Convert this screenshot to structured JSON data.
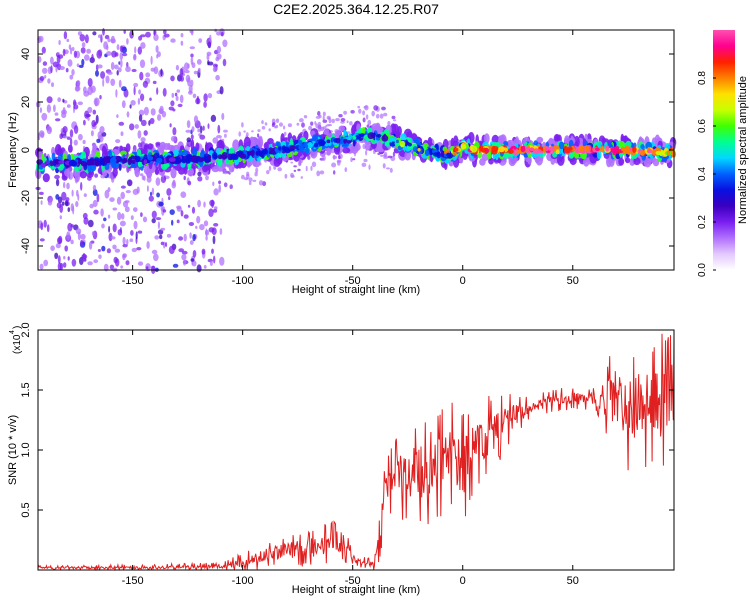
{
  "title": "C2E2.2025.364.12.25.R07",
  "chart_data": [
    {
      "type": "heatmap",
      "title": "C2E2.2025.364.12.25.R07",
      "xlabel": "Height of straight line (km)",
      "ylabel": "Frequency (Hz)",
      "xlim": [
        -193,
        96
      ],
      "ylim": [
        -50,
        50
      ],
      "x_ticks": [
        -150,
        -100,
        -50,
        0,
        50
      ],
      "y_ticks": [
        -40,
        -20,
        0,
        20,
        40
      ],
      "x_tick_labels": [
        "-150",
        "-100",
        "-50",
        "0",
        "50"
      ],
      "y_tick_labels": [
        "-40",
        "-20",
        "0",
        "20",
        "40"
      ],
      "colorbar": {
        "label": "Normalized spectral amplitude",
        "range": [
          0,
          1
        ],
        "ticks": [
          0.0,
          0.2,
          0.4,
          0.6,
          0.8
        ],
        "tick_labels": [
          "0.0",
          "0.2",
          "0.4",
          "0.6",
          "0.8"
        ],
        "colors": [
          "#ffffff",
          "#e4c8ff",
          "#b070ff",
          "#7a1ef0",
          "#3a00c0",
          "#0a10e0",
          "#0060ff",
          "#00d8ff",
          "#00ff90",
          "#40ff00",
          "#c8ff00",
          "#ffe000",
          "#ff8000",
          "#ff2000",
          "#ff0090",
          "#ff50b0"
        ]
      },
      "ridge": {
        "x": [
          -193,
          -170,
          -150,
          -130,
          -110,
          -90,
          -70,
          -55,
          -45,
          -35,
          -25,
          -15,
          -5,
          0,
          5,
          10,
          30,
          50,
          70,
          96
        ],
        "y": [
          -6,
          -5,
          -4,
          -4,
          -3,
          -1,
          2,
          4,
          6,
          5,
          2,
          -1,
          -2,
          2,
          0,
          0,
          0,
          0,
          0,
          -1
        ]
      },
      "peak": {
        "x": [
          -193,
          -160,
          -140,
          -120,
          -100,
          -80,
          -60,
          -45,
          -30,
          -20,
          -10,
          0,
          20,
          50,
          80,
          96
        ],
        "amplitude": [
          0.25,
          0.3,
          0.28,
          0.3,
          0.35,
          0.4,
          0.45,
          0.55,
          0.65,
          0.7,
          0.72,
          0.8,
          0.95,
          1.0,
          0.98,
          0.8
        ]
      }
    },
    {
      "type": "line",
      "title": "",
      "xlabel": "Height of straight line (km)",
      "ylabel": "SNR (10 * v/v)",
      "multiplier_label": "(x10",
      "multiplier_exp": "4",
      "xlim": [
        -193,
        96
      ],
      "ylim": [
        0,
        2.0
      ],
      "x_ticks": [
        -150,
        -100,
        -50,
        0,
        50
      ],
      "y_ticks": [
        0.5,
        1.0,
        1.5,
        2.0
      ],
      "x_tick_labels": [
        "-150",
        "-100",
        "-50",
        "0",
        "50"
      ],
      "y_tick_labels": [
        "0.5",
        "1.0",
        "1.5",
        "2.0"
      ],
      "color": "#e02020",
      "series": [
        {
          "name": "SNR",
          "x": [
            -193,
            -150,
            -110,
            -100,
            -90,
            -80,
            -70,
            -60,
            -55,
            -50,
            -48,
            -45,
            -40,
            -38,
            -35,
            -30,
            -25,
            -20,
            -15,
            -10,
            -5,
            0,
            5,
            10,
            15,
            20,
            25,
            30,
            35,
            40,
            45,
            50,
            55,
            60,
            65,
            70,
            75,
            80,
            85,
            90,
            96
          ],
          "y": [
            0.02,
            0.02,
            0.03,
            0.06,
            0.12,
            0.16,
            0.18,
            0.22,
            0.25,
            0.1,
            0.08,
            0.06,
            0.05,
            0.3,
            0.65,
            0.8,
            0.75,
            0.85,
            0.75,
            0.9,
            0.95,
            0.85,
            1.0,
            1.1,
            1.15,
            1.25,
            1.3,
            1.35,
            1.38,
            1.4,
            1.42,
            1.43,
            1.42,
            1.43,
            1.42,
            1.45,
            1.3,
            1.4,
            1.35,
            1.4,
            1.45
          ]
        }
      ],
      "noise_amp": {
        "x": [
          -193,
          -110,
          -100,
          -55,
          -50,
          -40,
          -38,
          -20,
          0,
          20,
          30,
          60,
          70,
          96
        ],
        "a": [
          0.01,
          0.02,
          0.05,
          0.12,
          0.03,
          0.03,
          0.15,
          0.28,
          0.3,
          0.15,
          0.06,
          0.06,
          0.3,
          0.38
        ]
      }
    }
  ]
}
